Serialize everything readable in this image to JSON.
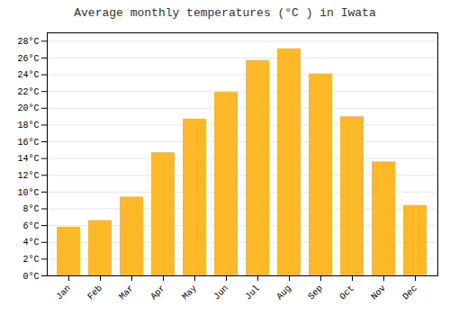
{
  "chart_data": {
    "type": "bar",
    "title": "Average monthly temperatures (°C ) in Iwata",
    "categories": [
      "Jan",
      "Feb",
      "Mar",
      "Apr",
      "May",
      "Jun",
      "Jul",
      "Aug",
      "Sep",
      "Oct",
      "Nov",
      "Dec"
    ],
    "values": [
      5.8,
      6.6,
      9.4,
      14.7,
      18.7,
      21.9,
      25.7,
      27.1,
      24.1,
      19.0,
      13.6,
      8.4
    ],
    "color": "#FDB827",
    "ylim": [
      0,
      29
    ],
    "yticks": [
      {
        "value": 0,
        "label": "0°C"
      },
      {
        "value": 2,
        "label": "2°C"
      },
      {
        "value": 4,
        "label": "4°C"
      },
      {
        "value": 6,
        "label": "6°C"
      },
      {
        "value": 8,
        "label": "8°C"
      },
      {
        "value": 10,
        "label": "10°C"
      },
      {
        "value": 12,
        "label": "12°C"
      },
      {
        "value": 14,
        "label": "14°C"
      },
      {
        "value": 16,
        "label": "16°C"
      },
      {
        "value": 18,
        "label": "18°C"
      },
      {
        "value": 20,
        "label": "20°C"
      },
      {
        "value": 22,
        "label": "22°C"
      },
      {
        "value": 24,
        "label": "24°C"
      },
      {
        "value": 26,
        "label": "26°C"
      },
      {
        "value": 28,
        "label": "28°C"
      }
    ],
    "grid": true
  }
}
